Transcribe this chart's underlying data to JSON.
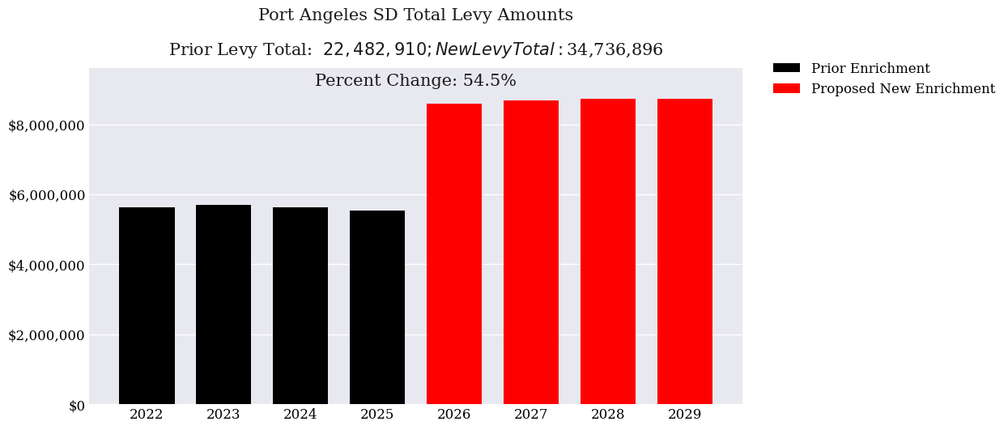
{
  "title_line1": "Port Angeles SD Total Levy Amounts",
  "title_line2": "Prior Levy Total:  $22,482,910; New Levy Total: $34,736,896",
  "title_line3": "Percent Change: 54.5%",
  "categories": [
    "2022",
    "2023",
    "2024",
    "2025",
    "2026",
    "2027",
    "2028",
    "2029"
  ],
  "values": [
    5620728,
    5687364,
    5630091,
    5544727,
    8600000,
    8680000,
    8720000,
    8736896
  ],
  "colors": [
    "#000000",
    "#000000",
    "#000000",
    "#000000",
    "#ff0000",
    "#ff0000",
    "#ff0000",
    "#ff0000"
  ],
  "legend_labels": [
    "Prior Enrichment",
    "Proposed New Enrichment"
  ],
  "legend_colors": [
    "#000000",
    "#ff0000"
  ],
  "ylim": [
    0,
    9600000
  ],
  "ytick_values": [
    0,
    2000000,
    4000000,
    6000000,
    8000000
  ],
  "ytick_labels": [
    "$0",
    "$2,000,000",
    "$4,000,000",
    "$6,000,000",
    "$8,000,000"
  ],
  "plot_bg_color": "#e8e8f0",
  "fig_bg_color": "#ffffff",
  "title_fontsize": 15,
  "tick_fontsize": 12,
  "legend_fontsize": 12
}
